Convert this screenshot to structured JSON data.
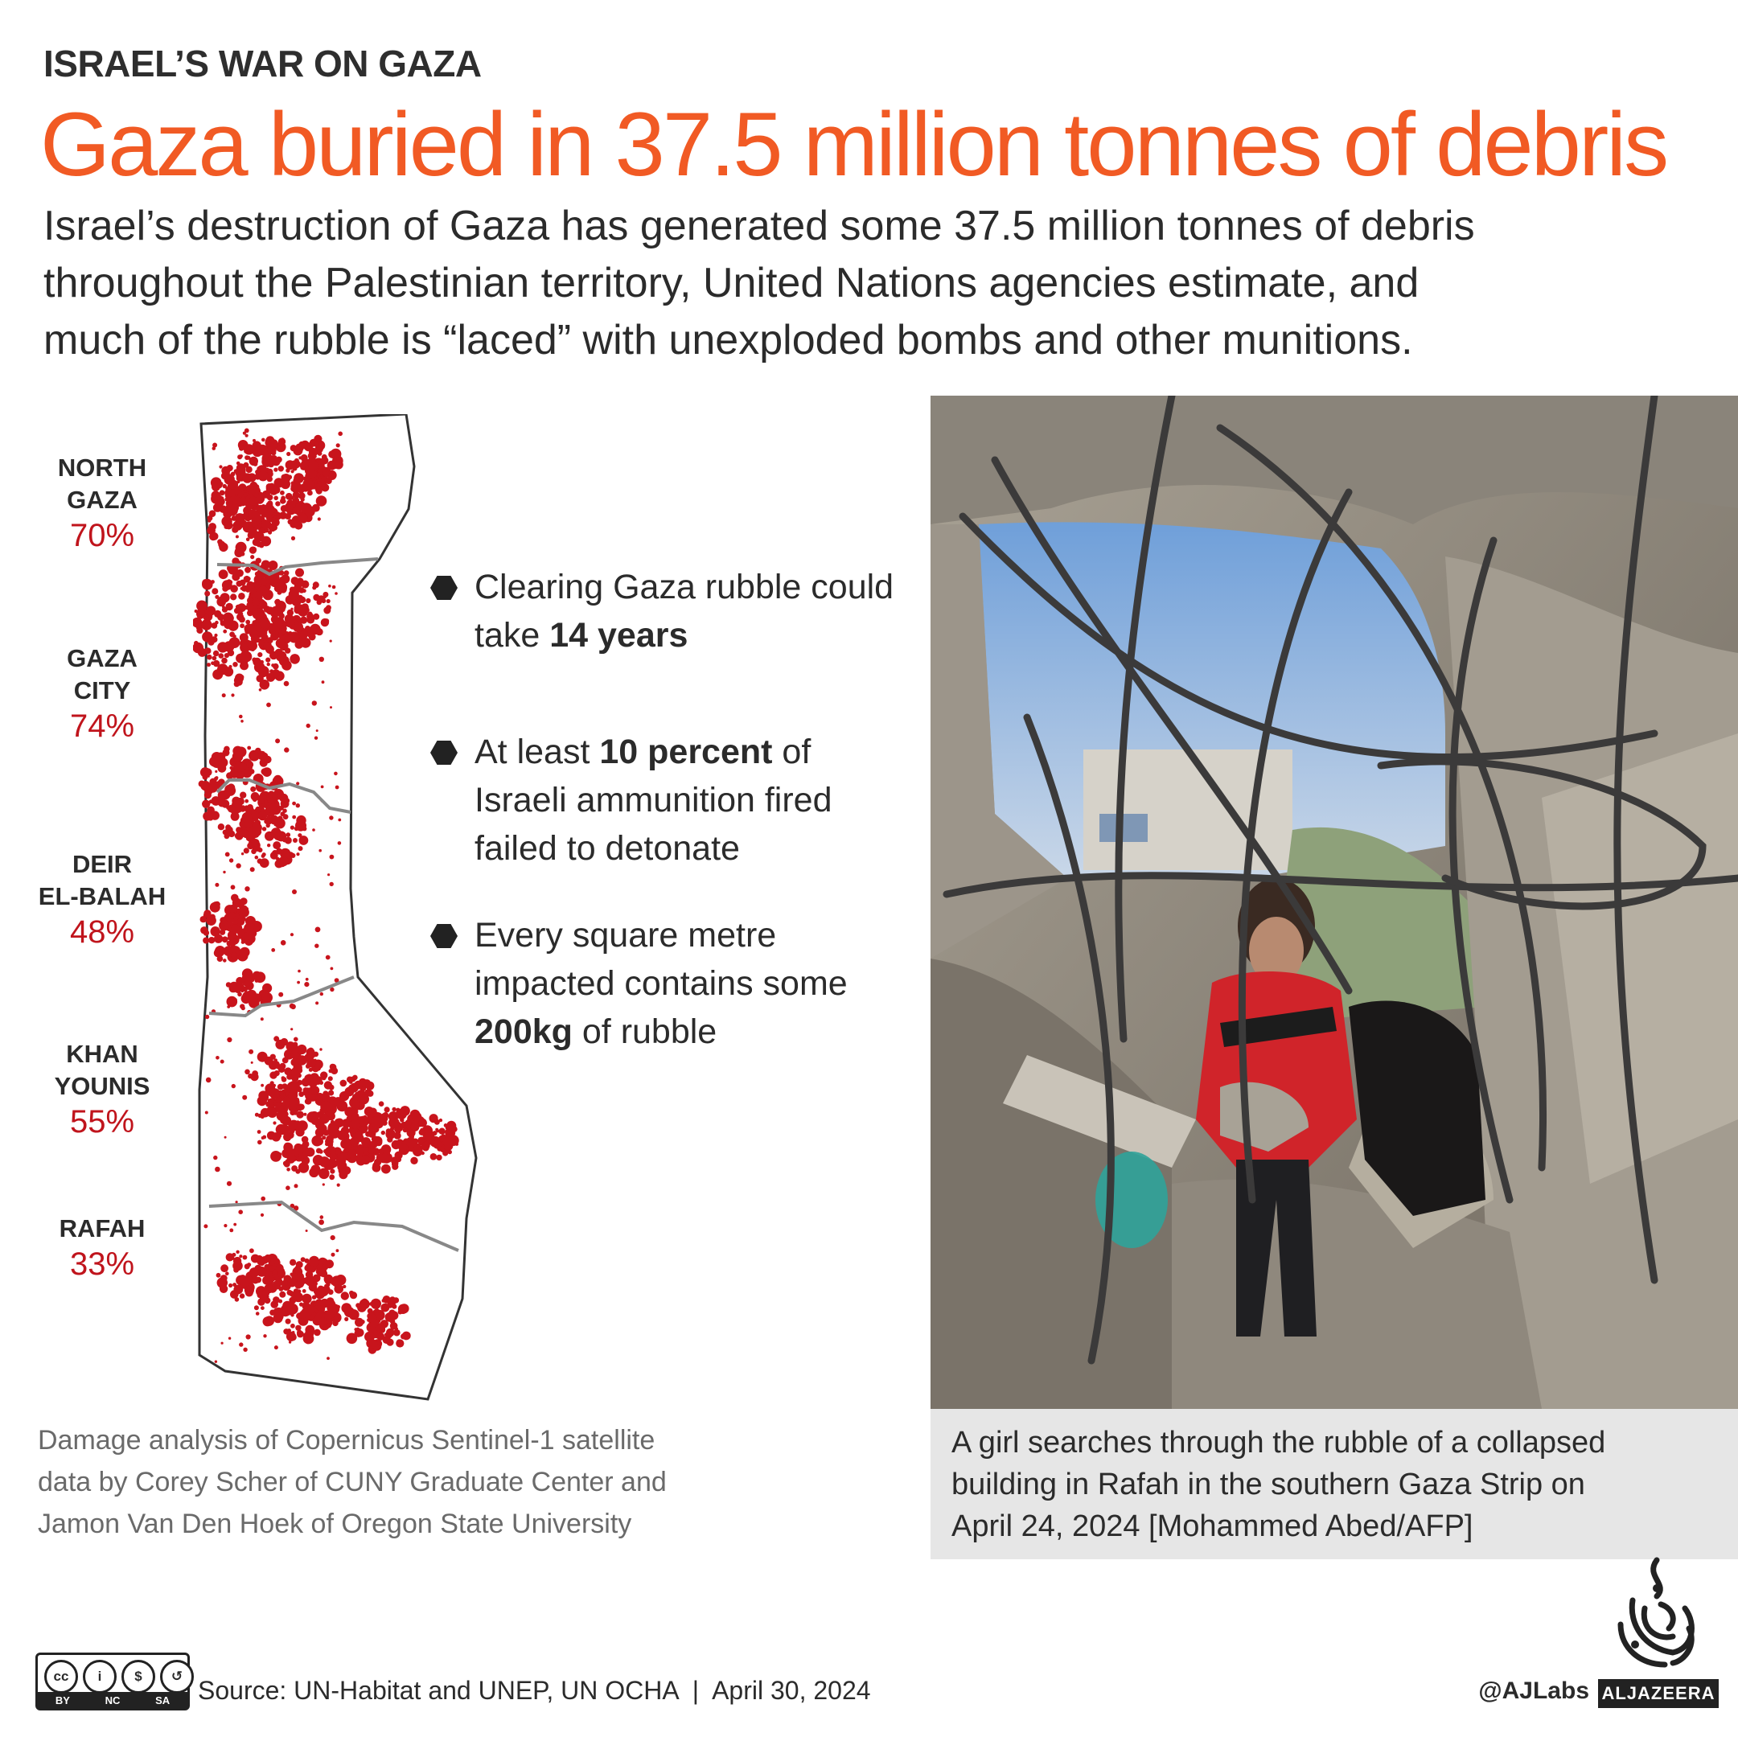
{
  "kicker": "ISRAEL’S WAR ON GAZA",
  "headline": "Gaza buried in 37.5 million tonnes of debris",
  "deck": {
    "line1": "Israel’s destruction of Gaza has generated some 37.5 million tonnes of debris",
    "line2": "throughout the Palestinian territory, United Nations agencies estimate, and",
    "line3": "much of the rubble is “laced” with unexploded bombs and other munitions."
  },
  "regions": [
    {
      "name_line1": "NORTH",
      "name_line2": "GAZA",
      "percent": "70%"
    },
    {
      "name_line1": "GAZA",
      "name_line2": "CITY",
      "percent": "74%"
    },
    {
      "name_line1": "DEIR",
      "name_line2": "EL-BALAH",
      "percent": "48%"
    },
    {
      "name_line1": "KHAN",
      "name_line2": "YOUNIS",
      "percent": "55%"
    },
    {
      "name_line1": "RAFAH",
      "name_line2": "",
      "percent": "33%"
    }
  ],
  "bullets": [
    {
      "pre": "Clearing Gaza rubble could take ",
      "bold": "14 years",
      "post": ""
    },
    {
      "pre": "At least ",
      "bold": "10 percent",
      "post": " of Israeli ammunition fired failed to detonate"
    },
    {
      "pre": "Every square metre impacted contains some ",
      "bold": "200kg",
      "post": " of rubble"
    }
  ],
  "map_credit": {
    "line1": "Damage analysis of Copernicus Sentinel-1 satellite",
    "line2": "data by Corey Scher of CUNY Graduate Center and",
    "line3": "Jamon Van Den Hoek of Oregon State University"
  },
  "photo_caption": {
    "line1": "A girl searches through the rubble of a collapsed",
    "line2": "building in Rafah in the southern Gaza Strip on",
    "line3": "April 24, 2024 [Mohammed Abed/AFP]"
  },
  "license": {
    "icon1": "cc",
    "icon2": "i",
    "icon3": "$",
    "icon4": "↺",
    "by": "BY",
    "nc": "NC",
    "sa": "SA"
  },
  "footer": {
    "source": "Source: UN-Habitat and UNEP, UN OCHA  |  April 30, 2024",
    "handle": "@AJLabs",
    "brand": "ALJAZEERA"
  },
  "colors": {
    "headline": "#f15a24",
    "damage": "#c8141c",
    "percent": "#c0141c"
  }
}
